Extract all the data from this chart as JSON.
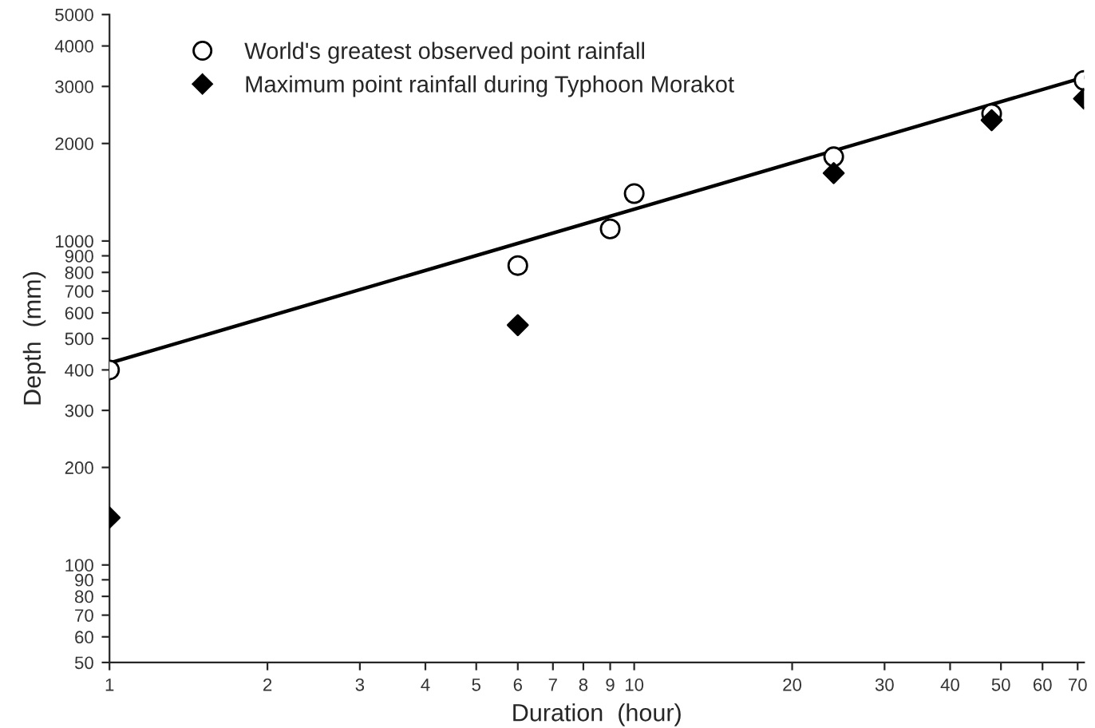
{
  "chart_data": {
    "type": "scatter",
    "xlabel": "Duration  (hour)",
    "ylabel": "Depth  (mm)",
    "log": "xy",
    "legend": "top left",
    "grid": false,
    "xlim": [
      1,
      72
    ],
    "xticks": [
      1,
      2,
      3,
      4,
      5,
      6,
      7,
      8,
      9,
      10,
      20,
      30,
      40,
      50,
      60,
      70
    ],
    "ylim": [
      50,
      5000
    ],
    "yticks": [
      50,
      60,
      70,
      80,
      90,
      100,
      200,
      300,
      400,
      500,
      600,
      700,
      800,
      900,
      1000,
      2000,
      3000,
      4000,
      5000
    ],
    "series": [
      {
        "name": "World's greatest observed point rainfall",
        "marker": "circle",
        "color": "#000000",
        "x": [
          1,
          6,
          9,
          10,
          24,
          48,
          72
        ],
        "values": [
          400,
          840,
          1090,
          1400,
          1820,
          2470,
          3130
        ]
      },
      {
        "name": "Maximum point rainfall during Typhoon Morakot",
        "marker": "diamond",
        "color": "#000000",
        "x": [
          1,
          6,
          24,
          48,
          72
        ],
        "values": [
          140,
          550,
          1620,
          2360,
          2750
        ]
      },
      {
        "type": "line",
        "color": "#000000",
        "line_style": "solid",
        "marker": "none",
        "x": [
          1,
          72
        ],
        "values": [
          420,
          3200
        ]
      }
    ]
  }
}
